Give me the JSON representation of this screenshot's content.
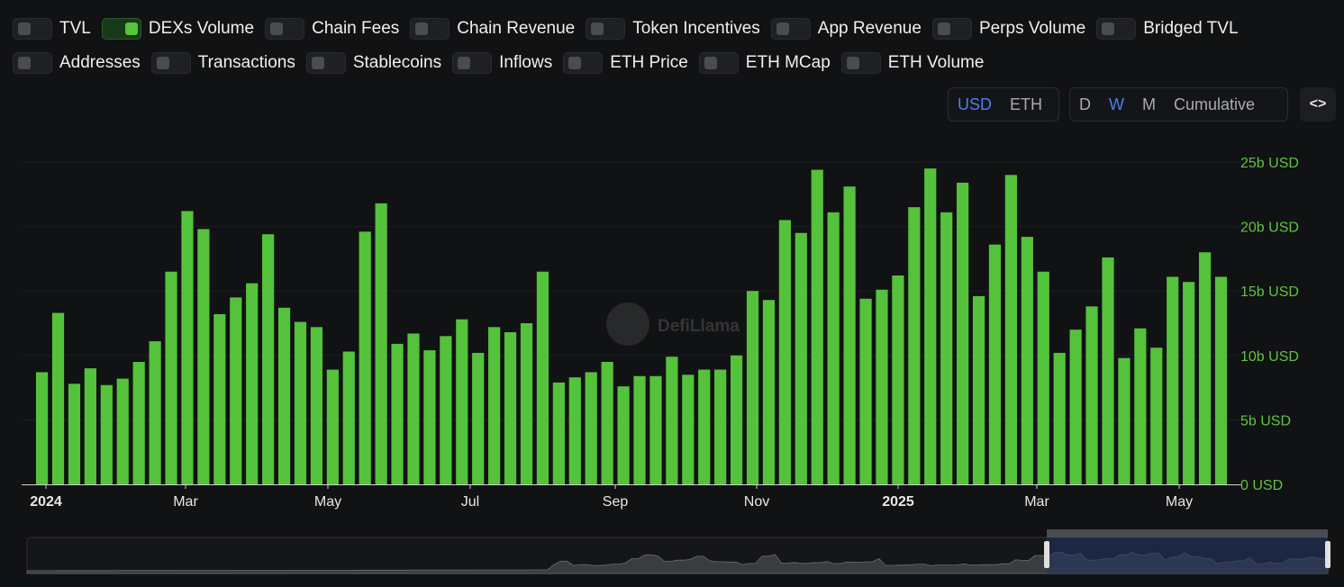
{
  "toggles_row1": [
    {
      "label": "TVL",
      "on": false
    },
    {
      "label": "DEXs Volume",
      "on": true
    },
    {
      "label": "Chain Fees",
      "on": false
    },
    {
      "label": "Chain Revenue",
      "on": false
    },
    {
      "label": "Token Incentives",
      "on": false
    },
    {
      "label": "App Revenue",
      "on": false
    },
    {
      "label": "Perps Volume",
      "on": false
    },
    {
      "label": "Bridged TVL",
      "on": false
    }
  ],
  "toggles_row2": [
    {
      "label": "Addresses",
      "on": false
    },
    {
      "label": "Transactions",
      "on": false
    },
    {
      "label": "Stablecoins",
      "on": false
    },
    {
      "label": "Inflows",
      "on": false
    },
    {
      "label": "ETH Price",
      "on": false
    },
    {
      "label": "ETH MCap",
      "on": false
    },
    {
      "label": "ETH Volume",
      "on": false
    }
  ],
  "currency": {
    "options": [
      "USD",
      "ETH"
    ],
    "active": "USD"
  },
  "period": {
    "options": [
      "D",
      "W",
      "M",
      "Cumulative"
    ],
    "active": "W"
  },
  "embed_label": "<>",
  "watermark": "DefiLlama",
  "colors": {
    "bar": "#55c23b",
    "axis_text": "#5fc33f",
    "background": "#111214",
    "brush_selection": "#23345e"
  },
  "chart_data": {
    "type": "bar",
    "series": [
      {
        "name": "DEXs Volume",
        "unit": "b USD",
        "values": [
          8.7,
          13.3,
          7.8,
          9.0,
          7.7,
          8.2,
          9.5,
          11.1,
          16.5,
          21.2,
          19.8,
          13.2,
          14.5,
          15.6,
          19.4,
          13.7,
          12.6,
          12.2,
          8.9,
          10.3,
          19.6,
          21.8,
          10.9,
          11.7,
          10.4,
          11.5,
          12.8,
          10.2,
          12.2,
          11.8,
          12.5,
          16.5,
          7.9,
          8.3,
          8.7,
          9.5,
          7.6,
          8.4,
          8.4,
          9.9,
          8.5,
          8.9,
          8.9,
          10.0,
          15.0,
          14.3,
          20.5,
          19.5,
          24.4,
          21.1,
          23.1,
          14.4,
          15.1,
          16.2,
          21.5,
          24.5,
          21.1,
          23.4,
          14.6,
          18.6,
          24.0,
          19.2,
          16.5,
          10.2,
          12.0,
          13.8,
          17.6,
          9.8,
          12.1,
          10.6,
          16.1,
          15.7,
          18.0,
          16.1
        ]
      }
    ],
    "x_tick_labels": [
      "2024",
      "Mar",
      "May",
      "Jul",
      "Sep",
      "Nov",
      "2025",
      "Mar",
      "May"
    ],
    "x_tick_bold": [
      "2024",
      "2025"
    ],
    "y_tick_labels": [
      "0 USD",
      "5b USD",
      "10b USD",
      "15b USD",
      "20b USD",
      "25b USD"
    ],
    "ylim": [
      0,
      25
    ],
    "grid": true
  }
}
